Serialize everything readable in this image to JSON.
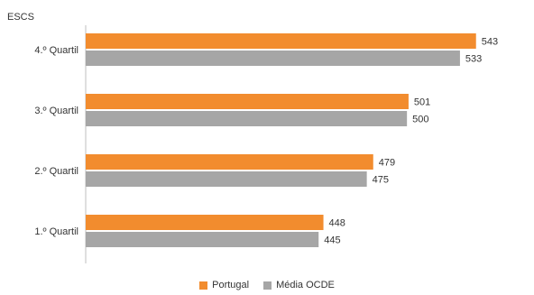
{
  "chart_data": {
    "type": "bar",
    "orientation": "horizontal",
    "ylabel": "ESCS",
    "categories": [
      "4.º Quartil",
      "3.º Quartil",
      "2.º Quartil",
      "1.º Quartil"
    ],
    "series": [
      {
        "name": "Portugal",
        "color": "#f28c2e",
        "values": [
          543,
          501,
          479,
          448
        ]
      },
      {
        "name": "Média OCDE",
        "color": "#a6a6a6",
        "values": [
          533,
          500,
          475,
          445
        ]
      }
    ],
    "xlim": [
      300,
      560
    ],
    "legend_position": "bottom",
    "grid": false
  }
}
